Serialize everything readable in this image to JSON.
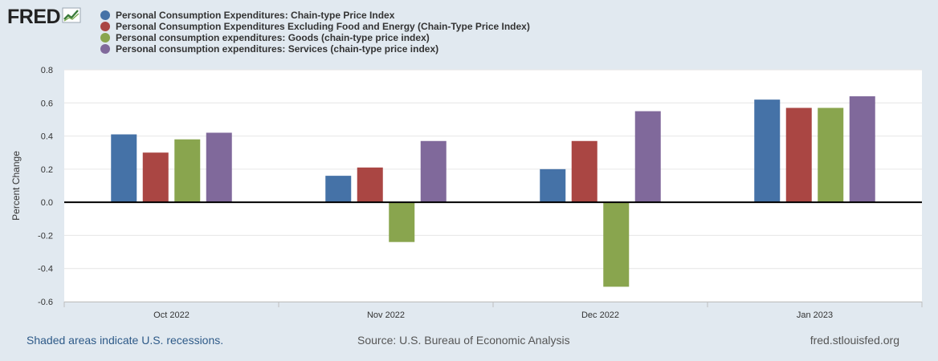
{
  "header": {
    "logo_text": "FRED",
    "logo_icon": "chart-line-icon"
  },
  "colors": {
    "background": "#e1e9f0",
    "plot_background": "#ffffff",
    "gridline": "#e6e6e6",
    "zero_line": "#000000",
    "series": [
      "#4572a7",
      "#aa4643",
      "#89a54e",
      "#80699b"
    ]
  },
  "chart_data": {
    "type": "bar",
    "title": "",
    "xlabel": "",
    "ylabel": "Percent Change",
    "ylim": [
      -0.6,
      0.8
    ],
    "yticks": [
      "0.8",
      "0.6",
      "0.4",
      "0.2",
      "0.0",
      "-0.2",
      "-0.4",
      "-0.6"
    ],
    "grid": true,
    "legend_position": "top-left",
    "categories": [
      "Oct 2022",
      "Nov 2022",
      "Dec 2022",
      "Jan 2023"
    ],
    "series": [
      {
        "name": "Personal Consumption Expenditures: Chain-type Price Index",
        "values": [
          0.41,
          0.16,
          0.2,
          0.62
        ]
      },
      {
        "name": "Personal Consumption Expenditures Excluding Food and Energy (Chain-Type Price Index)",
        "values": [
          0.3,
          0.21,
          0.37,
          0.57
        ]
      },
      {
        "name": "Personal consumption expenditures: Goods (chain-type price index)",
        "values": [
          0.38,
          -0.24,
          -0.51,
          0.57
        ]
      },
      {
        "name": "Personal consumption expenditures: Services (chain-type price index)",
        "values": [
          0.42,
          0.37,
          0.55,
          0.64
        ]
      }
    ]
  },
  "footer": {
    "recession_note": "Shaded areas indicate U.S. recessions.",
    "source": "Source: U.S. Bureau of Economic Analysis",
    "url": "fred.stlouisfed.org"
  }
}
